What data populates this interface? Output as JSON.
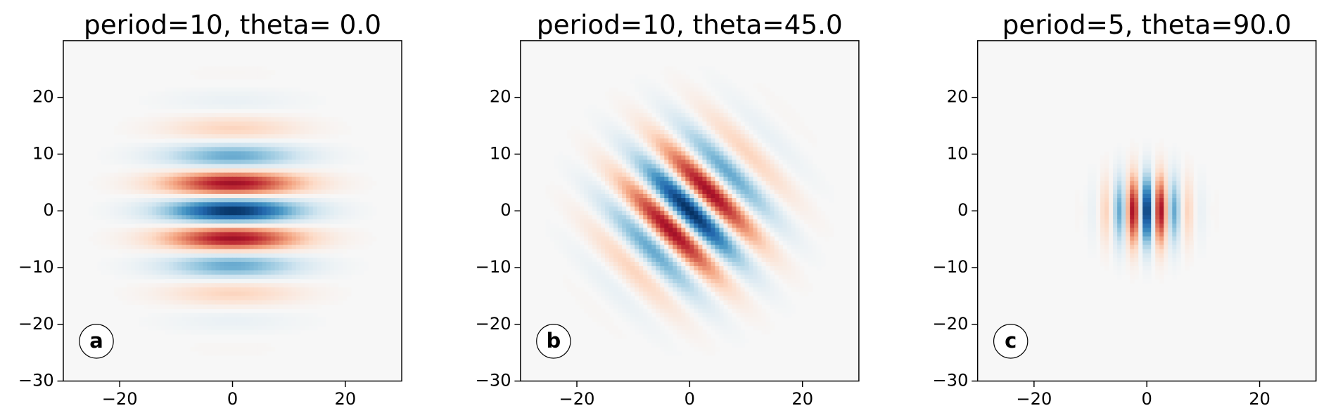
{
  "chart_data": [
    {
      "type": "heatmap",
      "title": "period=10, theta= 0.0",
      "panel_label": "a",
      "period": 10,
      "theta": 0.0,
      "colormap": "RdBu",
      "xlim": [
        -30,
        30
      ],
      "ylim": [
        -30,
        30
      ],
      "xticks": [
        {
          "value": -20,
          "label": "−20"
        },
        0,
        20
      ],
      "yticks": [
        {
          "value": -30,
          "label": "−30"
        },
        {
          "value": -20,
          "label": "−20"
        },
        {
          "value": -10,
          "label": "−10"
        },
        0,
        10,
        20
      ]
    },
    {
      "type": "heatmap",
      "title": "period=10, theta=45.0",
      "panel_label": "b",
      "period": 10,
      "theta": 45.0,
      "colormap": "RdBu",
      "xlim": [
        -30,
        30
      ],
      "ylim": [
        -30,
        30
      ],
      "xticks": [
        {
          "value": -20,
          "label": "−20"
        },
        0,
        20
      ],
      "yticks": [
        {
          "value": -30,
          "label": "−30"
        },
        {
          "value": -20,
          "label": "−20"
        },
        {
          "value": -10,
          "label": "−10"
        },
        0,
        10,
        20
      ]
    },
    {
      "type": "heatmap",
      "title": "period=5, theta=90.0",
      "panel_label": "c",
      "period": 5,
      "theta": 90.0,
      "colormap": "RdBu",
      "xlim": [
        -30,
        30
      ],
      "ylim": [
        -30,
        30
      ],
      "xticks": [
        {
          "value": -20,
          "label": "−20"
        },
        0,
        20
      ],
      "yticks": [
        {
          "value": -30,
          "label": "−30"
        },
        {
          "value": -20,
          "label": "−20"
        },
        {
          "value": -10,
          "label": "−10"
        },
        0,
        10,
        20
      ]
    }
  ]
}
